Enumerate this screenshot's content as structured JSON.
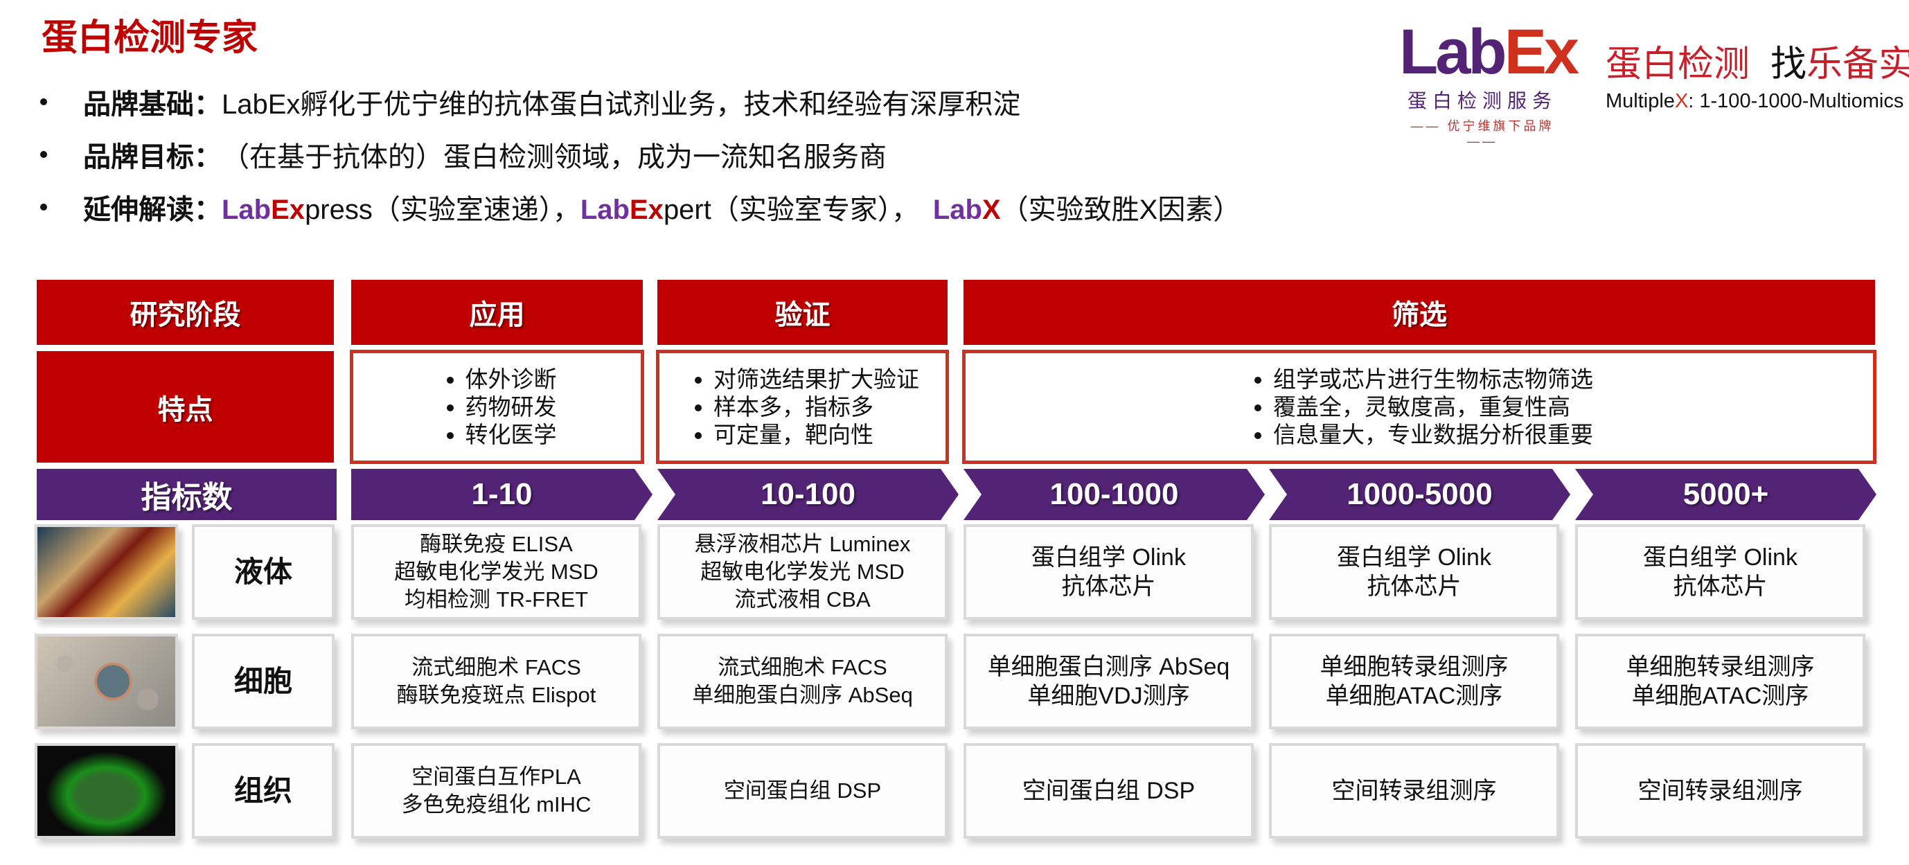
{
  "title": "蛋白检测专家",
  "bullets": [
    {
      "label": "品牌基础：",
      "text": "LabEx孵化于优宁维的抗体蛋白试剂业务，技术和经验有深厚积淀"
    },
    {
      "label": "品牌目标：",
      "text": "（在基于抗体的）蛋白检测领域，成为一流知名服务商"
    },
    {
      "label": "延伸解读：",
      "parts": [
        {
          "a": "Lab",
          "b": "Ex",
          "c": "press（实验室速递），"
        },
        {
          "a": "Lab",
          "b": "Ex",
          "c": "pert（实验室专家），"
        },
        {
          "a": "Lab",
          "b": "X",
          "c": "（实验致胜X因素）"
        }
      ]
    }
  ],
  "logo": {
    "lab": "Lab",
    "ex": "Ex",
    "subtitle": "蛋白检测服务",
    "tagline": "—— 优宁维旗下品牌 ——"
  },
  "slogan": {
    "part1": "蛋白检测",
    "part2": "找",
    "part3": "乐备实"
  },
  "multiplex": {
    "prefix": "Multiple",
    "x": "X",
    "rest": ": 1-100-1000-Multiomics"
  },
  "colors": {
    "red": "#C00000",
    "purple": "#532375",
    "text_purple": "#7030A0",
    "border_red": "#D03020"
  },
  "table": {
    "stage_label": "研究阶段",
    "stages": [
      "应用",
      "验证",
      "筛选"
    ],
    "feature_label": "特点",
    "features": [
      [
        "体外诊断",
        "药物研发",
        "转化医学"
      ],
      [
        "对筛选结果扩大验证",
        "样本多，指标多",
        "可定量，靶向性"
      ],
      [
        "组学或芯片进行生物标志物筛选",
        "覆盖全，灵敏度高，重复性高",
        "信息量大，专业数据分析很重要"
      ]
    ],
    "index_label": "指标数",
    "indexes": [
      "1-10",
      "10-100",
      "100-1000",
      "1000-5000",
      "5000+"
    ],
    "rows": [
      {
        "label": "液体",
        "image": "blood-tube-photo",
        "cells": [
          [
            "酶联免疫 ELISA",
            "超敏电化学发光 MSD",
            "均相检测 TR-FRET"
          ],
          [
            "悬浮液相芯片 Luminex",
            "超敏电化学发光 MSD",
            "流式液相 CBA"
          ],
          [
            "蛋白组学 Olink",
            "抗体芯片"
          ],
          [
            "蛋白组学 Olink",
            "抗体芯片"
          ],
          [
            "蛋白组学 Olink",
            "抗体芯片"
          ]
        ]
      },
      {
        "label": "细胞",
        "image": "cells-photo",
        "cells": [
          [
            "流式细胞术 FACS",
            "酶联免疫斑点 Elispot"
          ],
          [
            "流式细胞术 FACS",
            "单细胞蛋白测序 AbSeq"
          ],
          [
            "单细胞蛋白测序 AbSeq",
            "单细胞VDJ测序"
          ],
          [
            "单细胞转录组测序",
            "单细胞ATAC测序"
          ],
          [
            "单细胞转录组测序",
            "单细胞ATAC测序"
          ]
        ]
      },
      {
        "label": "组织",
        "image": "tissue-fluorescence-photo",
        "cells": [
          [
            "空间蛋白互作PLA",
            "多色免疫组化 mIHC"
          ],
          [
            "空间蛋白组 DSP"
          ],
          [
            "空间蛋白组 DSP"
          ],
          [
            "空间转录组测序"
          ],
          [
            "空间转录组测序"
          ]
        ]
      }
    ]
  }
}
